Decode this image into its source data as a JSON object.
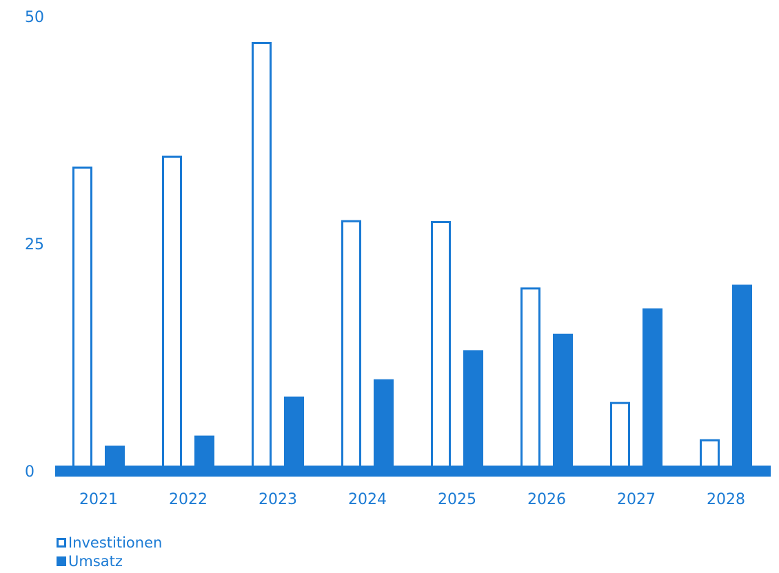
{
  "chart_data": {
    "type": "bar",
    "categories": [
      "2021",
      "2022",
      "2023",
      "2024",
      "2025",
      "2026",
      "2027",
      "2028"
    ],
    "series": [
      {
        "name": "Investitionen",
        "values": [
          33.5,
          34.7,
          47.2,
          27.6,
          27.5,
          20.2,
          7.6,
          3.5
        ],
        "style": "outline"
      },
      {
        "name": "Umsatz",
        "values": [
          2.8,
          3.9,
          8.2,
          10.1,
          13.3,
          15.1,
          17.9,
          20.5
        ],
        "style": "filled"
      }
    ],
    "ylim": [
      0,
      50
    ],
    "yticks": [
      "0",
      "25",
      "50"
    ],
    "title": "",
    "xlabel": "",
    "ylabel": "",
    "grid": false,
    "legend_position": "bottom-left",
    "colors": {
      "accent": "#1a7ad4",
      "background": "#ffffff"
    }
  }
}
